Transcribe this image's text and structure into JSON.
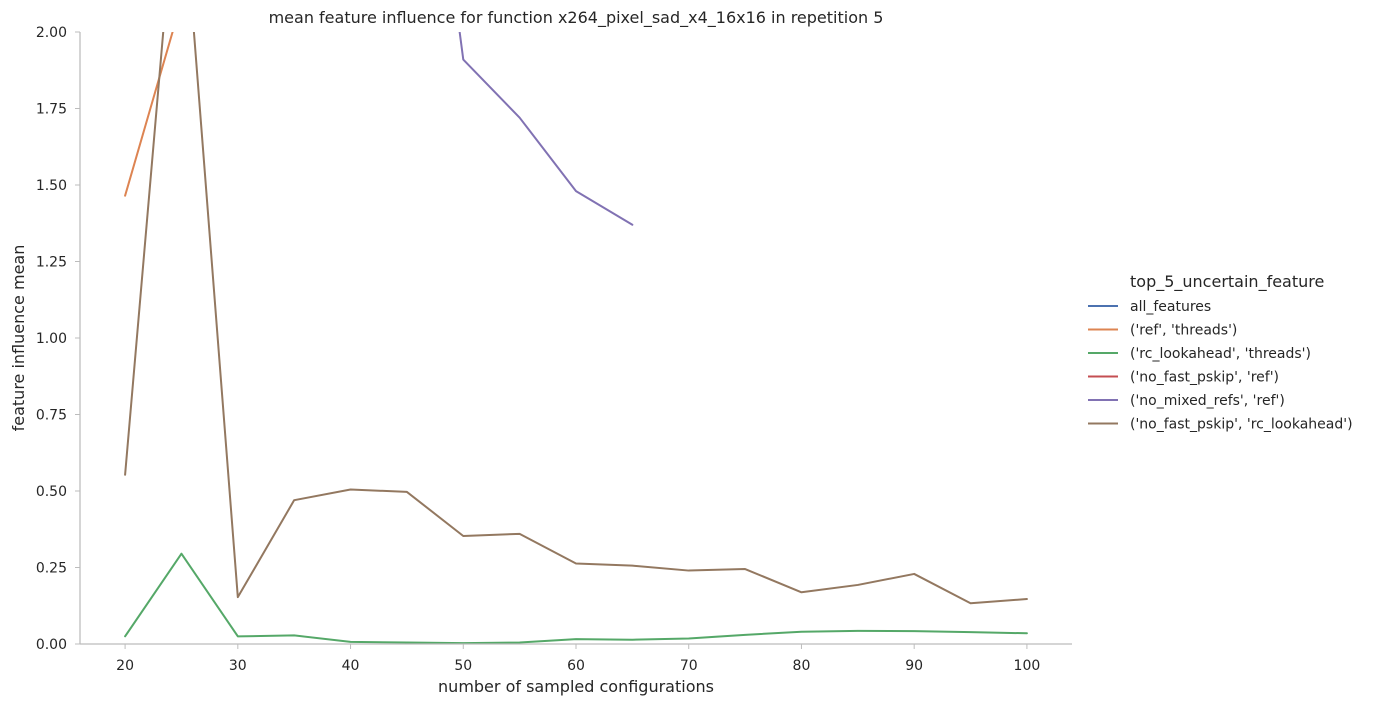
{
  "chart_data": {
    "type": "line",
    "title": "mean feature influence for function x264_pixel_sad_x4_16x16 in repetition 5",
    "xlabel": "number of sampled configurations",
    "ylabel": "feature influence mean",
    "xlim": [
      16,
      104
    ],
    "ylim": [
      0,
      2.0
    ],
    "xticks": [
      20,
      30,
      40,
      50,
      60,
      70,
      80,
      90,
      100
    ],
    "yticks": [
      0.0,
      0.25,
      0.5,
      0.75,
      1.0,
      1.25,
      1.5,
      1.75,
      2.0
    ],
    "ytick_labels": [
      "0.00",
      "0.25",
      "0.50",
      "0.75",
      "1.00",
      "1.25",
      "1.50",
      "1.75",
      "2.00"
    ],
    "grid": false,
    "legend": {
      "title": "top_5_uncertain_feature",
      "placement": "right"
    },
    "series": [
      {
        "name": "all_features",
        "color": "#4c72b0",
        "points": []
      },
      {
        "name": "('ref', 'threads')",
        "color": "#dd8452",
        "points": [
          [
            20,
            1.465
          ],
          [
            25,
            2.1
          ]
        ]
      },
      {
        "name": "('rc_lookahead', 'threads')",
        "color": "#55a868",
        "points": [
          [
            20,
            0.025
          ],
          [
            25,
            0.295
          ],
          [
            30,
            0.025
          ],
          [
            35,
            0.028
          ],
          [
            40,
            0.007
          ],
          [
            45,
            0.005
          ],
          [
            50,
            0.003
          ],
          [
            55,
            0.005
          ],
          [
            60,
            0.016
          ],
          [
            65,
            0.014
          ],
          [
            70,
            0.018
          ],
          [
            75,
            0.03
          ],
          [
            80,
            0.04
          ],
          [
            85,
            0.043
          ],
          [
            90,
            0.042
          ],
          [
            95,
            0.039
          ],
          [
            100,
            0.035
          ]
        ]
      },
      {
        "name": "('no_fast_pskip', 'ref')",
        "color": "#c44e52",
        "points": []
      },
      {
        "name": "('no_mixed_refs', 'ref')",
        "color": "#8172b3",
        "points": [
          [
            49.5,
            2.05
          ],
          [
            50,
            1.91
          ],
          [
            55,
            1.72
          ],
          [
            60,
            1.48
          ],
          [
            65,
            1.37
          ]
        ]
      },
      {
        "name": "('no_fast_pskip', 'rc_lookahead')",
        "color": "#937860",
        "points": [
          [
            20,
            0.553
          ],
          [
            23.5,
            2.05
          ],
          [
            26,
            2.05
          ],
          [
            30,
            0.153
          ],
          [
            35,
            0.47
          ],
          [
            40,
            0.505
          ],
          [
            45,
            0.497
          ],
          [
            50,
            0.353
          ],
          [
            55,
            0.36
          ],
          [
            60,
            0.263
          ],
          [
            65,
            0.256
          ],
          [
            70,
            0.24
          ],
          [
            75,
            0.245
          ],
          [
            80,
            0.169
          ],
          [
            85,
            0.193
          ],
          [
            90,
            0.229
          ],
          [
            95,
            0.133
          ],
          [
            100,
            0.147
          ]
        ]
      }
    ]
  }
}
